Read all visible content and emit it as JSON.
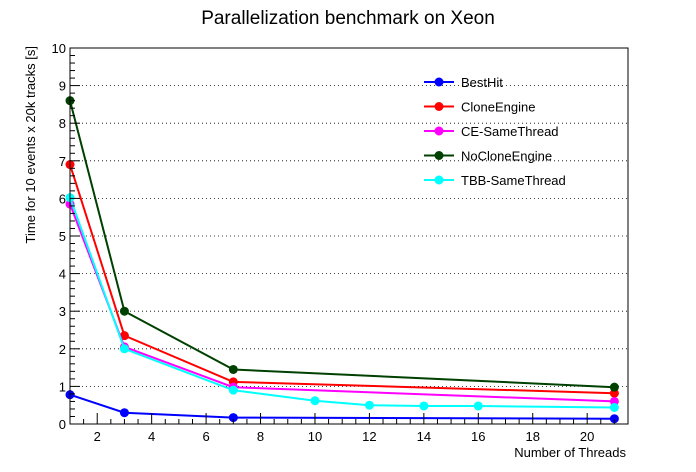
{
  "chart_data": {
    "type": "line",
    "title": "Parallelization benchmark on Xeon",
    "xlabel": "Number of Threads",
    "ylabel": "Time for 10 events x 20k tracks [s]",
    "xlim": [
      1,
      21.5
    ],
    "ylim": [
      0,
      10
    ],
    "xticks": [
      2,
      4,
      6,
      8,
      10,
      12,
      14,
      16,
      18,
      20
    ],
    "yticks": [
      0,
      1,
      2,
      3,
      4,
      5,
      6,
      7,
      8,
      9,
      10
    ],
    "grid": "horizontal dotted",
    "legend_position": "top-right",
    "series": [
      {
        "name": "BestHit",
        "color": "#0000ff",
        "points": [
          [
            1,
            0.78
          ],
          [
            3,
            0.3
          ],
          [
            7,
            0.17
          ],
          [
            21,
            0.14
          ]
        ]
      },
      {
        "name": "CloneEngine",
        "color": "#ff0000",
        "points": [
          [
            1,
            6.9
          ],
          [
            3,
            2.35
          ],
          [
            7,
            1.12
          ],
          [
            21,
            0.82
          ]
        ]
      },
      {
        "name": "CE-SameThread",
        "color": "#ff00ff",
        "points": [
          [
            1,
            5.85
          ],
          [
            3,
            2.05
          ],
          [
            7,
            0.98
          ],
          [
            21,
            0.6
          ]
        ]
      },
      {
        "name": "NoCloneEngine",
        "color": "#004000",
        "points": [
          [
            1,
            8.6
          ],
          [
            3,
            3.0
          ],
          [
            7,
            1.45
          ],
          [
            21,
            0.98
          ]
        ]
      },
      {
        "name": "TBB-SameThread",
        "color": "#00ffff",
        "points": [
          [
            1,
            6.02
          ],
          [
            3,
            2.0
          ],
          [
            7,
            0.9
          ],
          [
            10,
            0.62
          ],
          [
            12,
            0.5
          ],
          [
            14,
            0.48
          ],
          [
            16,
            0.48
          ],
          [
            21,
            0.44
          ]
        ]
      }
    ]
  }
}
